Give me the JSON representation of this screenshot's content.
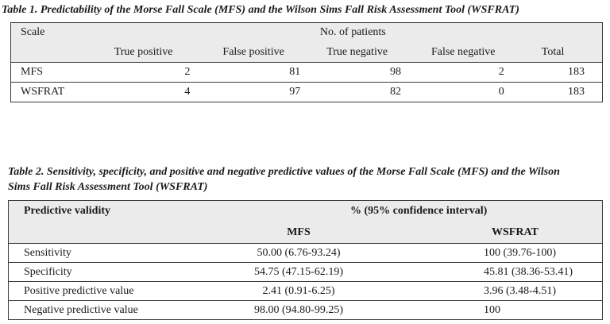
{
  "table1": {
    "caption": "Table 1. Predictability of the Morse Fall Scale (MFS) and the Wilson Sims Fall Risk Assessment Tool (WSFRAT)",
    "header_scale": "Scale",
    "header_group": "No. of patients",
    "columns": [
      "True positive",
      "False positive",
      "True negative",
      "False negative",
      "Total"
    ],
    "rows": [
      {
        "scale": "MFS",
        "values": [
          "2",
          "81",
          "98",
          "2",
          "183"
        ]
      },
      {
        "scale": "WSFRAT",
        "values": [
          "4",
          "97",
          "82",
          "0",
          "183"
        ]
      }
    ]
  },
  "table2": {
    "caption_line1": "Table 2. Sensitivity, specificity, and positive and negative predictive values of the Morse Fall Scale (MFS) and the Wilson",
    "caption_line2": "Sims Fall Risk Assessment Tool (WSFRAT)",
    "header_label": "Predictive validity",
    "header_group": "% (95% confidence interval)",
    "col_mfs": "MFS",
    "col_wsfrat": "WSFRAT",
    "rows": [
      {
        "label": "Sensitivity",
        "mfs": "50.00 (6.76-93.24)",
        "wsfrat": "100 (39.76-100)"
      },
      {
        "label": "Specificity",
        "mfs": "54.75 (47.15-62.19)",
        "wsfrat": "45.81 (38.36-53.41)"
      },
      {
        "label": "Positive predictive value",
        "mfs": "2.41 (0.91-6.25)",
        "wsfrat": "3.96 (3.48-4.51)"
      },
      {
        "label": "Negative predictive value",
        "mfs": "98.00 (94.80-99.25)",
        "wsfrat": "100"
      }
    ]
  }
}
